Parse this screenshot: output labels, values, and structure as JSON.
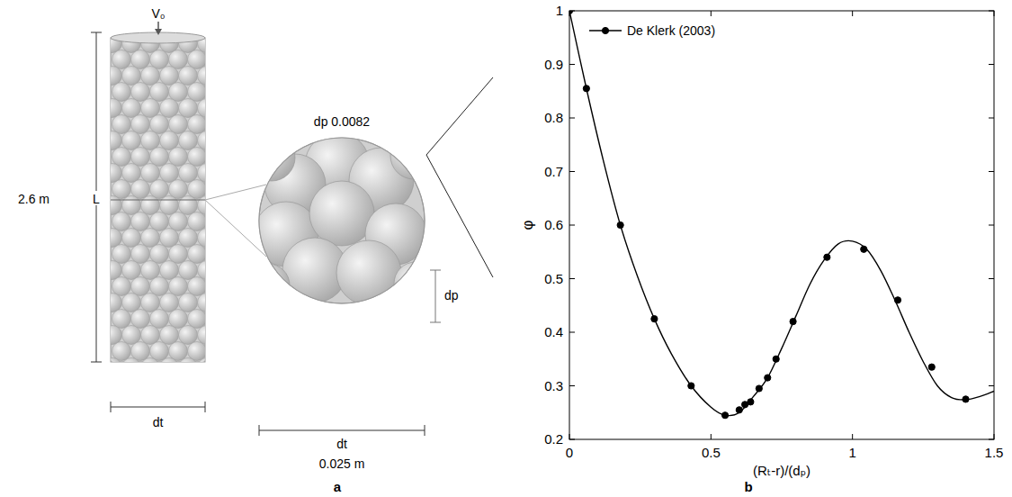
{
  "diagram": {
    "column": {
      "inlet_label": "V₀",
      "length_value": "2.6 m",
      "length_label": "L",
      "diameter_label": "dt"
    },
    "cross_section": {
      "particle_label": "dp 0.0082",
      "diameter_label": "dt",
      "diameter_value": "0.025 m",
      "particle_size_label": "dp"
    },
    "panel_labels": [
      "a",
      "b"
    ]
  },
  "chart_data": {
    "type": "line",
    "x_label": "(Rₜ-r)/(dₚ)",
    "y_label": "φ",
    "xlim": [
      0,
      1.5
    ],
    "ylim": [
      0.2,
      1
    ],
    "xticks": [
      0,
      0.5,
      1,
      1.5
    ],
    "yticks": [
      0.2,
      0.3,
      0.4,
      0.5,
      0.6,
      0.7,
      0.8,
      0.9,
      1
    ],
    "grid": false,
    "legend": "upper left",
    "series": [
      {
        "color": "#000000",
        "line_style": "solid",
        "marker": "none",
        "x": [
          0,
          0.06,
          0.12,
          0.18,
          0.24,
          0.3,
          0.36,
          0.43,
          0.5,
          0.55,
          0.6,
          0.65,
          0.7,
          0.75,
          0.8,
          0.85,
          0.9,
          0.95,
          1.0,
          1.05,
          1.1,
          1.15,
          1.2,
          1.25,
          1.3,
          1.35,
          1.4,
          1.45,
          1.5
        ],
        "values": [
          1.0,
          0.855,
          0.72,
          0.6,
          0.505,
          0.425,
          0.36,
          0.3,
          0.26,
          0.245,
          0.25,
          0.28,
          0.315,
          0.37,
          0.43,
          0.49,
          0.535,
          0.565,
          0.57,
          0.555,
          0.515,
          0.46,
          0.4,
          0.345,
          0.3,
          0.278,
          0.274,
          0.28,
          0.29
        ]
      },
      {
        "name": "De Klerk (2003)",
        "color": "#000000",
        "line_style": "none",
        "marker": "circle",
        "x": [
          0,
          0.06,
          0.18,
          0.3,
          0.43,
          0.55,
          0.6,
          0.62,
          0.64,
          0.67,
          0.7,
          0.73,
          0.79,
          0.91,
          1.04,
          1.16,
          1.28,
          1.4
        ],
        "values": [
          1.0,
          0.855,
          0.6,
          0.425,
          0.3,
          0.245,
          0.255,
          0.265,
          0.27,
          0.295,
          0.315,
          0.35,
          0.42,
          0.54,
          0.555,
          0.46,
          0.335,
          0.275
        ]
      }
    ]
  }
}
